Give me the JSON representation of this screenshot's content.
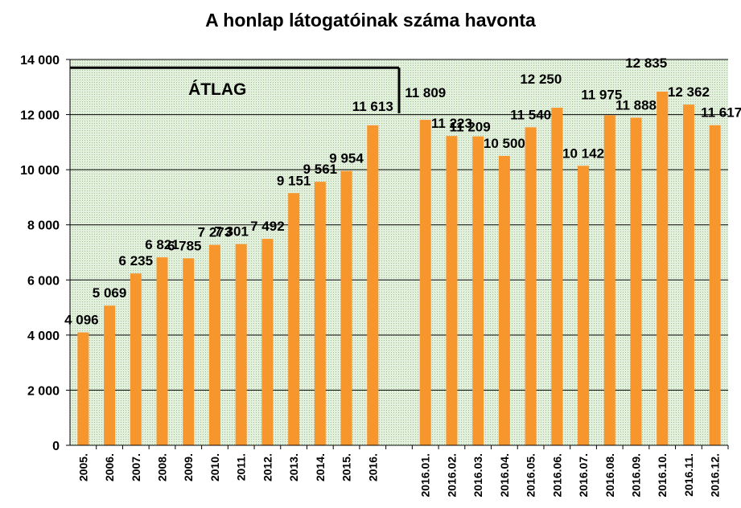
{
  "chart_data": {
    "type": "bar",
    "title": "A honlap látogatóinak száma havonta",
    "xlabel": "",
    "ylabel": "",
    "ylim": [
      0,
      14000
    ],
    "yticks": [
      "0",
      "2 000",
      "4 000",
      "6 000",
      "8 000",
      "10 000",
      "12 000",
      "14 000"
    ],
    "grid": true,
    "bar_color": "#F7962D",
    "plot_background": "#D9EAD3",
    "annotation": "ÁTLAG",
    "categories": [
      "2005.",
      "2006.",
      "2007.",
      "2008.",
      "2009.",
      "2010.",
      "2011.",
      "2012.",
      "2013.",
      "2014.",
      "2015.",
      "2016.",
      "",
      "2016.01.",
      "2016.02.",
      "2016.03.",
      "2016.04.",
      "2016.05.",
      "2016.06.",
      "2016.07.",
      "2016.08.",
      "2016.09.",
      "2016.10.",
      "2016.11.",
      "2016.12."
    ],
    "values": [
      4096,
      5069,
      6235,
      6821,
      6785,
      7273,
      7301,
      7492,
      9151,
      9561,
      9954,
      11613,
      null,
      11809,
      11223,
      11209,
      10500,
      11540,
      12250,
      10142,
      11975,
      11888,
      12835,
      12362,
      11617
    ],
    "data_labels": [
      "4 096",
      "5 069",
      "6 235",
      "6 821",
      "6 785",
      "7 273",
      "7 301",
      "7 492",
      "9 151",
      "9 561",
      "9 954",
      "11 613",
      "",
      "11 809",
      "11 223",
      "11 209",
      "10 500",
      "11 540",
      "12 250",
      "10 142",
      "11 975",
      "11 888",
      "12 835",
      "12 362",
      "11 617"
    ]
  }
}
